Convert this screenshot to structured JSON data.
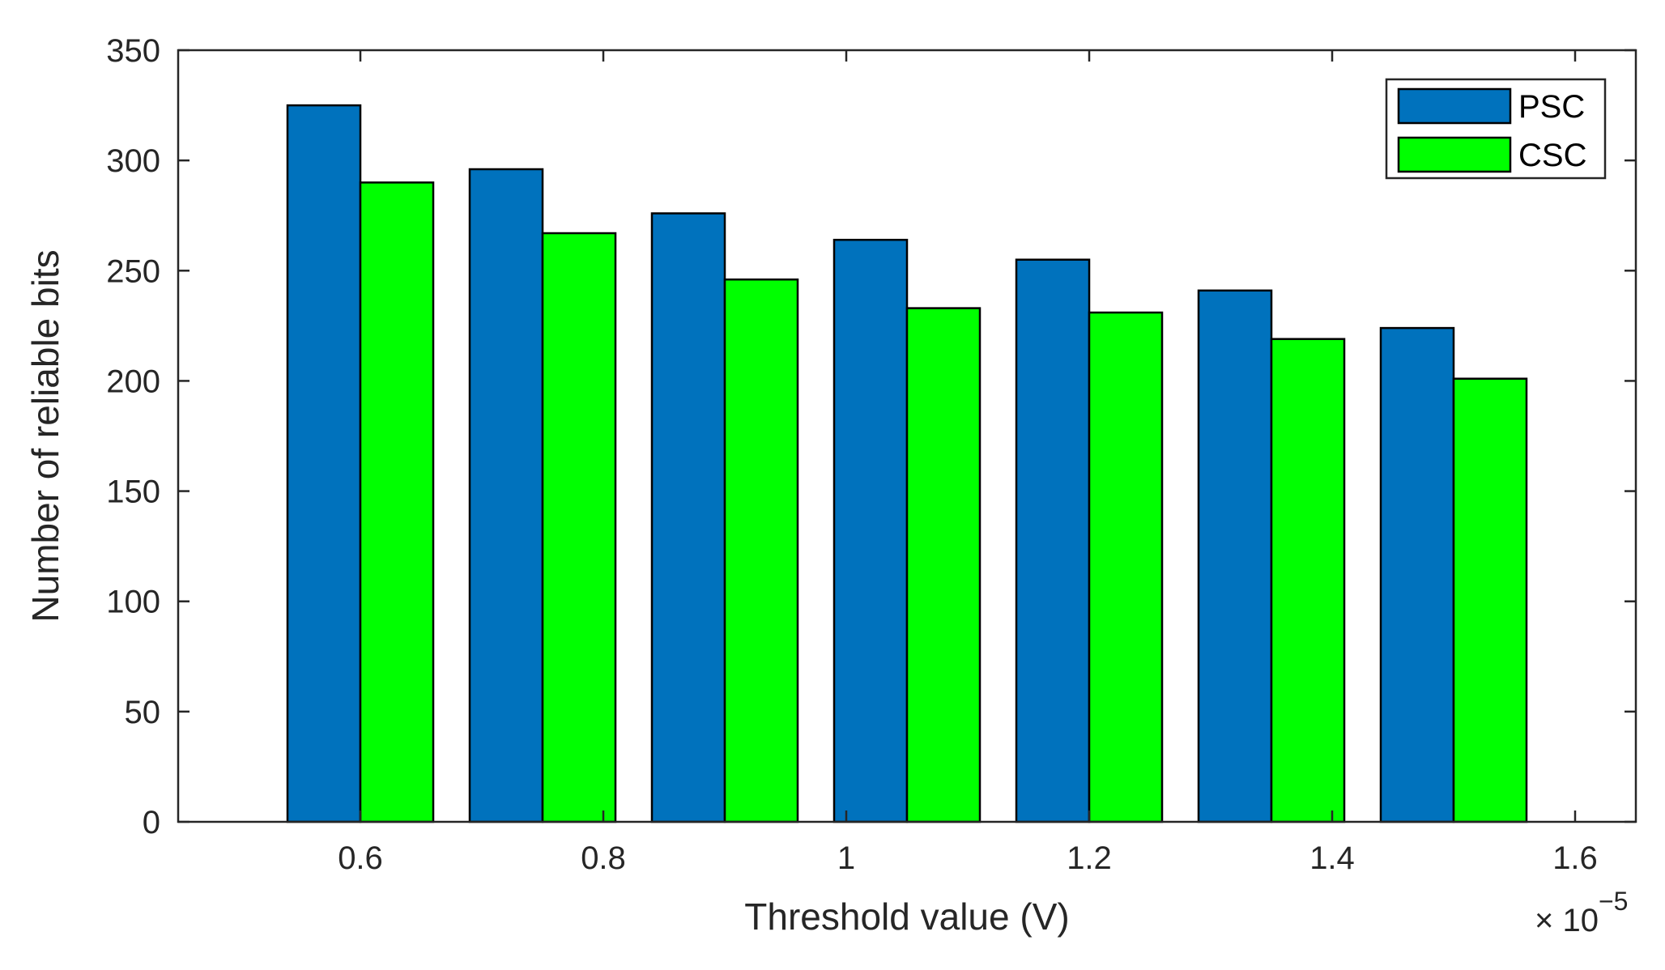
{
  "chart_data": {
    "type": "bar",
    "title": "",
    "xlabel": "Threshold value (V)",
    "ylabel": "Number of reliable bits",
    "x_exponent_base": "× 10",
    "x_exponent_power": "−5",
    "categories": [
      0.6,
      0.75,
      0.9,
      1.05,
      1.2,
      1.35,
      1.5
    ],
    "series": [
      {
        "name": "PSC",
        "color": "#0072BD",
        "values": [
          325,
          296,
          276,
          264,
          255,
          241,
          224
        ]
      },
      {
        "name": "CSC",
        "color": "#00FF00",
        "values": [
          290,
          267,
          246,
          233,
          231,
          219,
          201
        ]
      }
    ],
    "xlim": [
      0.45,
      1.65
    ],
    "ylim": [
      0,
      350
    ],
    "xticks": [
      0.6,
      0.8,
      1.0,
      1.2,
      1.4,
      1.6
    ],
    "xtick_labels": [
      "0.6",
      "0.8",
      "1",
      "1.2",
      "1.4",
      "1.6"
    ],
    "yticks": [
      0,
      50,
      100,
      150,
      200,
      250,
      300,
      350
    ],
    "ytick_labels": [
      "0",
      "50",
      "100",
      "150",
      "200",
      "250",
      "300",
      "350"
    ],
    "legend_position": "top-right",
    "grid": false
  }
}
